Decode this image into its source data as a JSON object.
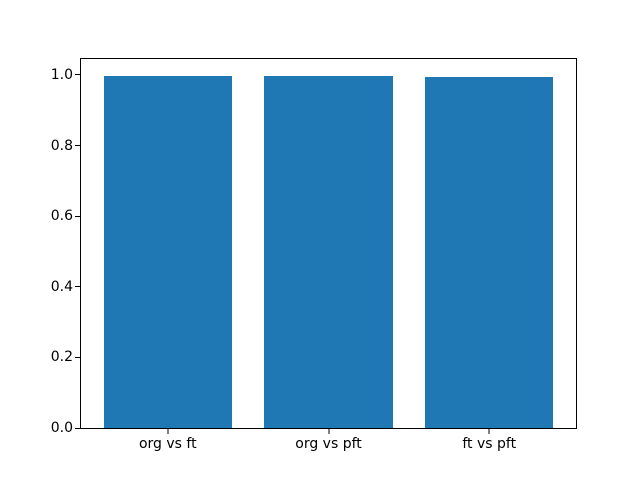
{
  "chart_data": {
    "type": "bar",
    "categories": [
      "org vs ft",
      "org vs pft",
      "ft vs pft"
    ],
    "values": [
      0.997,
      0.997,
      0.994
    ],
    "title": "",
    "xlabel": "",
    "ylabel": "",
    "ylim": [
      0,
      1.045
    ],
    "xlim": [
      -0.54,
      2.54
    ],
    "bar_width": 0.8,
    "yticks": [
      {
        "value": 0.0,
        "label": "0.0"
      },
      {
        "value": 0.2,
        "label": "0.2"
      },
      {
        "value": 0.4,
        "label": "0.4"
      },
      {
        "value": 0.6,
        "label": "0.6"
      },
      {
        "value": 0.8,
        "label": "0.8"
      },
      {
        "value": 1.0,
        "label": "1.0"
      }
    ],
    "grid": false,
    "legend": false,
    "bar_color": "#1f77b4",
    "background_color": "#ffffff",
    "axis_color": "#000000"
  }
}
